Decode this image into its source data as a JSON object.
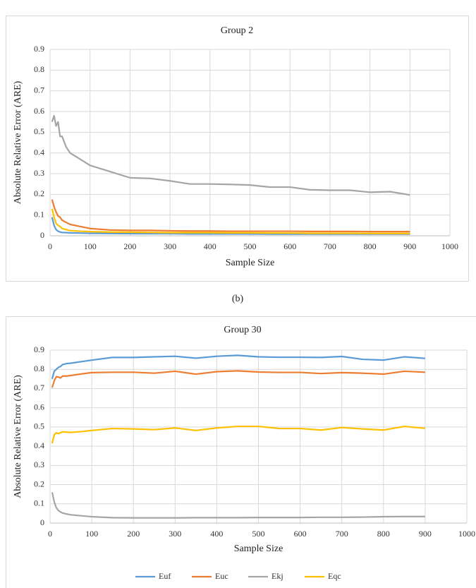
{
  "caption": "(b)",
  "chart_data": [
    {
      "type": "line",
      "title": "Group 2",
      "x_label": "Sample Size",
      "y_label": "Absolute Relative Error (ARE)",
      "x": [
        5,
        10,
        15,
        20,
        25,
        30,
        40,
        50,
        75,
        100,
        150,
        200,
        250,
        300,
        350,
        400,
        450,
        500,
        550,
        600,
        650,
        700,
        750,
        800,
        850,
        900
      ],
      "series": [
        {
          "color": "#5b9bd5",
          "values": [
            0.09,
            0.05,
            0.03,
            0.022,
            0.018,
            0.016,
            0.015,
            0.014,
            0.013,
            0.012,
            0.011,
            0.01,
            0.01,
            0.01,
            0.009,
            0.009,
            0.009,
            0.009,
            0.008,
            0.008,
            0.008,
            0.008,
            0.008,
            0.008,
            0.008,
            0.008
          ]
        },
        {
          "color": "#ed7d31",
          "values": [
            0.175,
            0.14,
            0.115,
            0.095,
            0.09,
            0.075,
            0.065,
            0.055,
            0.045,
            0.035,
            0.028,
            0.026,
            0.026,
            0.024,
            0.023,
            0.023,
            0.022,
            0.022,
            0.022,
            0.022,
            0.021,
            0.021,
            0.021,
            0.02,
            0.02,
            0.02
          ]
        },
        {
          "color": "#a5a5a5",
          "values": [
            0.55,
            0.58,
            0.53,
            0.55,
            0.48,
            0.48,
            0.43,
            0.4,
            0.37,
            0.34,
            0.31,
            0.28,
            0.277,
            0.265,
            0.25,
            0.25,
            0.248,
            0.245,
            0.235,
            0.235,
            0.222,
            0.22,
            0.22,
            0.21,
            0.213,
            0.197
          ]
        },
        {
          "color": "#ffc000",
          "values": [
            0.13,
            0.09,
            0.06,
            0.05,
            0.045,
            0.035,
            0.03,
            0.025,
            0.022,
            0.02,
            0.018,
            0.017,
            0.016,
            0.015,
            0.015,
            0.015,
            0.014,
            0.014,
            0.013,
            0.013,
            0.012,
            0.012,
            0.012,
            0.011,
            0.011,
            0.011
          ]
        }
      ],
      "xlim": [
        0,
        1000
      ],
      "xticks": [
        0,
        100,
        200,
        300,
        400,
        500,
        600,
        700,
        800,
        900,
        1000
      ],
      "ylim": [
        0,
        0.9
      ],
      "yticks": [
        0,
        0.1,
        0.2,
        0.3,
        0.4,
        0.5,
        0.6,
        0.7,
        0.8,
        0.9
      ],
      "grid": true
    },
    {
      "type": "line",
      "title": "Group 30",
      "x_label": "Sample Size",
      "y_label": "Absolute Relative Error (ARE)",
      "x": [
        5,
        10,
        15,
        20,
        25,
        30,
        40,
        50,
        75,
        100,
        150,
        200,
        250,
        300,
        350,
        400,
        450,
        500,
        550,
        600,
        650,
        700,
        750,
        800,
        850,
        900
      ],
      "series": [
        {
          "name": "Euf",
          "color": "#5b9bd5",
          "values": [
            0.75,
            0.79,
            0.8,
            0.81,
            0.815,
            0.825,
            0.83,
            0.832,
            0.84,
            0.848,
            0.862,
            0.862,
            0.865,
            0.868,
            0.858,
            0.868,
            0.873,
            0.865,
            0.863,
            0.863,
            0.862,
            0.867,
            0.852,
            0.848,
            0.865,
            0.857
          ]
        },
        {
          "name": "Euc",
          "color": "#ed7d31",
          "values": [
            0.705,
            0.74,
            0.762,
            0.76,
            0.755,
            0.765,
            0.765,
            0.768,
            0.776,
            0.783,
            0.785,
            0.785,
            0.78,
            0.79,
            0.775,
            0.788,
            0.792,
            0.786,
            0.784,
            0.784,
            0.778,
            0.783,
            0.78,
            0.775,
            0.79,
            0.785
          ]
        },
        {
          "name": "Ekj",
          "color": "#a5a5a5",
          "values": [
            0.16,
            0.11,
            0.08,
            0.065,
            0.058,
            0.052,
            0.047,
            0.043,
            0.038,
            0.033,
            0.028,
            0.027,
            0.027,
            0.027,
            0.028,
            0.028,
            0.028,
            0.029,
            0.029,
            0.029,
            0.03,
            0.03,
            0.031,
            0.033,
            0.034,
            0.034
          ]
        },
        {
          "name": "Eqc",
          "color": "#ffc000",
          "values": [
            0.415,
            0.46,
            0.47,
            0.465,
            0.47,
            0.475,
            0.473,
            0.472,
            0.476,
            0.482,
            0.492,
            0.49,
            0.486,
            0.495,
            0.482,
            0.495,
            0.503,
            0.503,
            0.492,
            0.492,
            0.484,
            0.497,
            0.49,
            0.484,
            0.503,
            0.493
          ]
        }
      ],
      "xlim": [
        0,
        1000
      ],
      "xticks": [
        0,
        100,
        200,
        300,
        400,
        500,
        600,
        700,
        800,
        900,
        1000
      ],
      "ylim": [
        0,
        0.9
      ],
      "yticks": [
        0,
        0.1,
        0.2,
        0.3,
        0.4,
        0.5,
        0.6,
        0.7,
        0.8,
        0.9
      ],
      "grid": true,
      "legend": "bottom"
    }
  ]
}
